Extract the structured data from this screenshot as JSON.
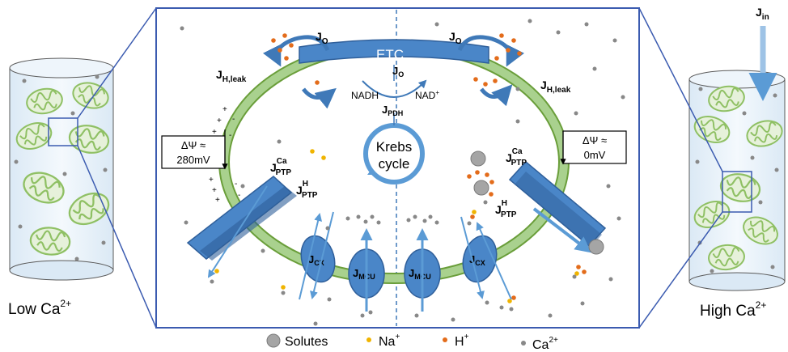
{
  "labels": {
    "etc": "ETC",
    "krebs_line1": "Krebs",
    "krebs_line2": "cycle",
    "nadh": "NADH",
    "nad": "NAD",
    "nad_sup": "+",
    "j": "J",
    "sub_o": "O",
    "sub_h_leak": "H,leak",
    "sub_pdh": "PDH",
    "sub_cx": "CX",
    "sub_mcu": "MCU",
    "sub_in": "in",
    "sub_ptp": "PTP",
    "sup_ca": "Ca",
    "sup_h": "H",
    "dpsi_left_line1": "ΔΨ ≈",
    "dpsi_left_line2": "280mV",
    "dpsi_right_line1": "ΔΨ ≈",
    "dpsi_right_line2": "0mV",
    "low_ca": "Low Ca",
    "high_ca": "High Ca",
    "ca_sup": "2+",
    "plus": "+",
    "minus": "-"
  },
  "legend": {
    "solutes": "Solutes",
    "na": "Na",
    "na_sup": "+",
    "h": "H",
    "h_sup": "+",
    "ca": "Ca",
    "ca_sup": "2+"
  },
  "colors": {
    "membrane": "#92c460",
    "membrane_dark": "#6a9e3a",
    "protein": "#4a86c8",
    "protein_dark": "#2f5f9a",
    "arrow": "#5b9bd5",
    "sodium": "#f0b400",
    "proton": "#e36c1b",
    "calcium": "#888888",
    "solute": "#a5a5a5",
    "frame": "#3b5bb0"
  }
}
